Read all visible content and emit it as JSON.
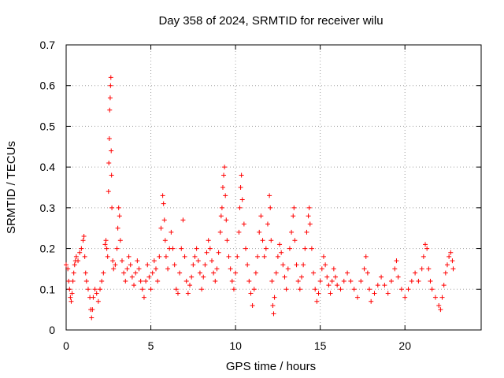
{
  "chart_data": {
    "type": "scatter",
    "title": "Day 358 of 2024, SRMTID for receiver wilu",
    "xlabel": "GPS time / hours",
    "ylabel": "SRMTID / TECUs",
    "xlim": [
      0,
      24.5
    ],
    "ylim": [
      0,
      0.7
    ],
    "xticks": [
      0,
      5,
      10,
      15,
      20
    ],
    "xtick_labels": [
      "0",
      "5",
      "10",
      "15",
      "20"
    ],
    "yticks": [
      0,
      0.1,
      0.2,
      0.3,
      0.4,
      0.5,
      0.6,
      0.7
    ],
    "ytick_labels": [
      "0",
      "0.1",
      "0.2",
      "0.3",
      "0.4",
      "0.5",
      "0.6",
      "0.7"
    ],
    "grid": true,
    "legend": "none",
    "marker": "plus",
    "series_color": "#ff0000",
    "series": [
      {
        "name": "SRMTID",
        "points": [
          [
            0.0,
            0.16
          ],
          [
            0.1,
            0.15
          ],
          [
            0.15,
            0.12
          ],
          [
            0.2,
            0.1
          ],
          [
            0.25,
            0.08
          ],
          [
            0.3,
            0.07
          ],
          [
            0.35,
            0.09
          ],
          [
            0.4,
            0.12
          ],
          [
            0.45,
            0.14
          ],
          [
            0.5,
            0.16
          ],
          [
            0.55,
            0.17
          ],
          [
            0.6,
            0.18
          ],
          [
            0.7,
            0.17
          ],
          [
            0.8,
            0.19
          ],
          [
            0.9,
            0.2
          ],
          [
            1.0,
            0.22
          ],
          [
            1.05,
            0.23
          ],
          [
            1.1,
            0.18
          ],
          [
            1.15,
            0.14
          ],
          [
            1.2,
            0.12
          ],
          [
            1.3,
            0.1
          ],
          [
            1.4,
            0.08
          ],
          [
            1.45,
            0.05
          ],
          [
            1.5,
            0.03
          ],
          [
            1.55,
            0.05
          ],
          [
            1.6,
            0.08
          ],
          [
            1.7,
            0.1
          ],
          [
            1.8,
            0.09
          ],
          [
            1.9,
            0.07
          ],
          [
            2.0,
            0.1
          ],
          [
            2.1,
            0.12
          ],
          [
            2.2,
            0.14
          ],
          [
            2.3,
            0.21
          ],
          [
            2.35,
            0.22
          ],
          [
            2.4,
            0.2
          ],
          [
            2.45,
            0.18
          ],
          [
            2.5,
            0.34
          ],
          [
            2.52,
            0.41
          ],
          [
            2.55,
            0.47
          ],
          [
            2.57,
            0.54
          ],
          [
            2.6,
            0.57
          ],
          [
            2.62,
            0.6
          ],
          [
            2.64,
            0.62
          ],
          [
            2.66,
            0.44
          ],
          [
            2.68,
            0.38
          ],
          [
            2.7,
            0.3
          ],
          [
            2.75,
            0.17
          ],
          [
            2.8,
            0.15
          ],
          [
            2.9,
            0.16
          ],
          [
            3.0,
            0.2
          ],
          [
            3.05,
            0.25
          ],
          [
            3.1,
            0.3
          ],
          [
            3.15,
            0.28
          ],
          [
            3.2,
            0.22
          ],
          [
            3.3,
            0.17
          ],
          [
            3.4,
            0.14
          ],
          [
            3.5,
            0.12
          ],
          [
            3.6,
            0.15
          ],
          [
            3.7,
            0.18
          ],
          [
            3.8,
            0.16
          ],
          [
            3.9,
            0.13
          ],
          [
            4.0,
            0.11
          ],
          [
            4.1,
            0.14
          ],
          [
            4.2,
            0.17
          ],
          [
            4.3,
            0.15
          ],
          [
            4.4,
            0.12
          ],
          [
            4.5,
            0.1
          ],
          [
            4.6,
            0.08
          ],
          [
            4.7,
            0.12
          ],
          [
            4.8,
            0.16
          ],
          [
            4.9,
            0.13
          ],
          [
            5.0,
            0.1
          ],
          [
            5.1,
            0.14
          ],
          [
            5.2,
            0.17
          ],
          [
            5.3,
            0.15
          ],
          [
            5.4,
            0.12
          ],
          [
            5.5,
            0.18
          ],
          [
            5.6,
            0.25
          ],
          [
            5.7,
            0.33
          ],
          [
            5.75,
            0.31
          ],
          [
            5.8,
            0.27
          ],
          [
            5.85,
            0.22
          ],
          [
            5.9,
            0.18
          ],
          [
            6.0,
            0.15
          ],
          [
            6.1,
            0.2
          ],
          [
            6.2,
            0.24
          ],
          [
            6.3,
            0.2
          ],
          [
            6.4,
            0.16
          ],
          [
            6.5,
            0.1
          ],
          [
            6.6,
            0.09
          ],
          [
            6.7,
            0.14
          ],
          [
            6.8,
            0.2
          ],
          [
            6.9,
            0.27
          ],
          [
            7.0,
            0.18
          ],
          [
            7.1,
            0.12
          ],
          [
            7.2,
            0.09
          ],
          [
            7.3,
            0.11
          ],
          [
            7.4,
            0.13
          ],
          [
            7.5,
            0.16
          ],
          [
            7.6,
            0.18
          ],
          [
            7.7,
            0.2
          ],
          [
            7.8,
            0.17
          ],
          [
            7.9,
            0.14
          ],
          [
            8.0,
            0.1
          ],
          [
            8.1,
            0.13
          ],
          [
            8.2,
            0.16
          ],
          [
            8.3,
            0.19
          ],
          [
            8.4,
            0.22
          ],
          [
            8.5,
            0.2
          ],
          [
            8.6,
            0.17
          ],
          [
            8.7,
            0.14
          ],
          [
            8.8,
            0.12
          ],
          [
            8.9,
            0.15
          ],
          [
            9.0,
            0.19
          ],
          [
            9.1,
            0.24
          ],
          [
            9.15,
            0.28
          ],
          [
            9.2,
            0.3
          ],
          [
            9.25,
            0.35
          ],
          [
            9.3,
            0.38
          ],
          [
            9.35,
            0.4
          ],
          [
            9.4,
            0.33
          ],
          [
            9.45,
            0.27
          ],
          [
            9.5,
            0.22
          ],
          [
            9.6,
            0.18
          ],
          [
            9.7,
            0.15
          ],
          [
            9.8,
            0.12
          ],
          [
            9.9,
            0.1
          ],
          [
            10.0,
            0.14
          ],
          [
            10.1,
            0.18
          ],
          [
            10.2,
            0.24
          ],
          [
            10.25,
            0.3
          ],
          [
            10.3,
            0.35
          ],
          [
            10.35,
            0.38
          ],
          [
            10.4,
            0.32
          ],
          [
            10.5,
            0.26
          ],
          [
            10.6,
            0.2
          ],
          [
            10.7,
            0.16
          ],
          [
            10.8,
            0.12
          ],
          [
            10.9,
            0.09
          ],
          [
            11.0,
            0.06
          ],
          [
            11.1,
            0.1
          ],
          [
            11.2,
            0.14
          ],
          [
            11.3,
            0.18
          ],
          [
            11.4,
            0.24
          ],
          [
            11.5,
            0.28
          ],
          [
            11.6,
            0.22
          ],
          [
            11.7,
            0.18
          ],
          [
            11.8,
            0.2
          ],
          [
            11.9,
            0.26
          ],
          [
            12.0,
            0.33
          ],
          [
            12.05,
            0.3
          ],
          [
            12.1,
            0.22
          ],
          [
            12.15,
            0.12
          ],
          [
            12.2,
            0.06
          ],
          [
            12.25,
            0.04
          ],
          [
            12.3,
            0.08
          ],
          [
            12.4,
            0.14
          ],
          [
            12.5,
            0.18
          ],
          [
            12.6,
            0.21
          ],
          [
            12.7,
            0.19
          ],
          [
            12.8,
            0.16
          ],
          [
            12.9,
            0.13
          ],
          [
            13.0,
            0.1
          ],
          [
            13.1,
            0.15
          ],
          [
            13.2,
            0.2
          ],
          [
            13.3,
            0.24
          ],
          [
            13.4,
            0.28
          ],
          [
            13.45,
            0.3
          ],
          [
            13.5,
            0.22
          ],
          [
            13.6,
            0.16
          ],
          [
            13.7,
            0.12
          ],
          [
            13.8,
            0.1
          ],
          [
            13.9,
            0.13
          ],
          [
            14.0,
            0.16
          ],
          [
            14.1,
            0.2
          ],
          [
            14.2,
            0.24
          ],
          [
            14.3,
            0.28
          ],
          [
            14.35,
            0.3
          ],
          [
            14.4,
            0.26
          ],
          [
            14.5,
            0.2
          ],
          [
            14.6,
            0.14
          ],
          [
            14.7,
            0.1
          ],
          [
            14.8,
            0.07
          ],
          [
            14.9,
            0.09
          ],
          [
            15.0,
            0.12
          ],
          [
            15.1,
            0.15
          ],
          [
            15.2,
            0.18
          ],
          [
            15.3,
            0.16
          ],
          [
            15.4,
            0.13
          ],
          [
            15.5,
            0.11
          ],
          [
            15.6,
            0.09
          ],
          [
            15.7,
            0.12
          ],
          [
            15.8,
            0.15
          ],
          [
            15.9,
            0.13
          ],
          [
            16.0,
            0.11
          ],
          [
            16.2,
            0.1
          ],
          [
            16.4,
            0.12
          ],
          [
            16.6,
            0.14
          ],
          [
            16.8,
            0.12
          ],
          [
            17.0,
            0.1
          ],
          [
            17.2,
            0.08
          ],
          [
            17.4,
            0.12
          ],
          [
            17.6,
            0.15
          ],
          [
            17.7,
            0.18
          ],
          [
            17.8,
            0.14
          ],
          [
            17.9,
            0.1
          ],
          [
            18.0,
            0.07
          ],
          [
            18.2,
            0.09
          ],
          [
            18.4,
            0.11
          ],
          [
            18.6,
            0.13
          ],
          [
            18.8,
            0.11
          ],
          [
            19.0,
            0.09
          ],
          [
            19.2,
            0.12
          ],
          [
            19.4,
            0.15
          ],
          [
            19.5,
            0.17
          ],
          [
            19.6,
            0.13
          ],
          [
            19.8,
            0.1
          ],
          [
            20.0,
            0.08
          ],
          [
            20.2,
            0.1
          ],
          [
            20.4,
            0.12
          ],
          [
            20.6,
            0.14
          ],
          [
            20.8,
            0.12
          ],
          [
            21.0,
            0.15
          ],
          [
            21.1,
            0.18
          ],
          [
            21.2,
            0.21
          ],
          [
            21.3,
            0.2
          ],
          [
            21.4,
            0.15
          ],
          [
            21.5,
            0.12
          ],
          [
            21.6,
            0.1
          ],
          [
            21.8,
            0.08
          ],
          [
            22.0,
            0.06
          ],
          [
            22.1,
            0.05
          ],
          [
            22.2,
            0.08
          ],
          [
            22.3,
            0.11
          ],
          [
            22.4,
            0.14
          ],
          [
            22.5,
            0.16
          ],
          [
            22.6,
            0.18
          ],
          [
            22.7,
            0.19
          ],
          [
            22.8,
            0.17
          ],
          [
            22.85,
            0.15
          ]
        ]
      }
    ]
  }
}
